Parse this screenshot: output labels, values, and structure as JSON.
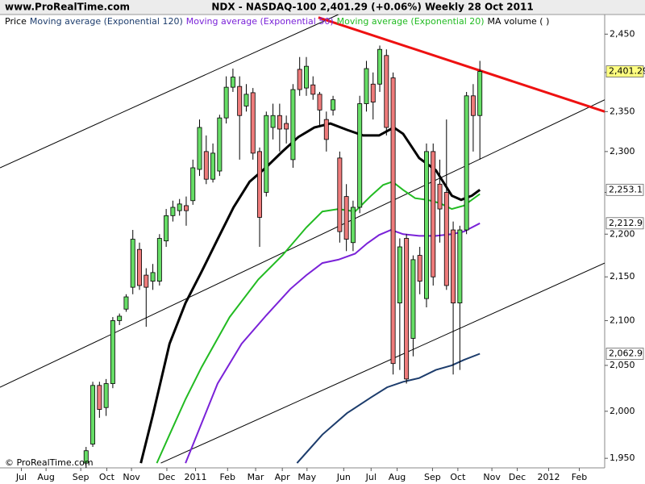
{
  "chart_data": {
    "type": "candlestick",
    "site": "www.ProRealTime.com",
    "title": "NDX - NASDAQ-100    2,401.29 (+0.06%)    Weekly  28 Oct 2011",
    "price_label": "Price",
    "copyright": "© ProRealTime.com",
    "log_scale": true,
    "up_color": "#66dd66",
    "down_color": "#ee7b7b",
    "open": [
      1945,
      1965,
      2028,
      2004,
      2030,
      2100,
      2113,
      2138,
      2182,
      2152,
      2145,
      2145,
      2192,
      2222,
      2228,
      2234,
      2240,
      2278,
      2300,
      2266,
      2276,
      2342,
      2381,
      2382,
      2357,
      2374,
      2300,
      2250,
      2330,
      2345,
      2335,
      2290,
      2404,
      2380,
      2384,
      2372,
      2340,
      2352,
      2292,
      2245,
      2190,
      2232,
      2360,
      2385,
      2385,
      2422,
      2393,
      2120,
      2195,
      2080,
      2175,
      2125,
      2300,
      2260,
      2250,
      2205,
      2120,
      2205,
      2370,
      2345
    ],
    "high": [
      1962,
      2032,
      2032,
      2035,
      2104,
      2108,
      2130,
      2205,
      2190,
      2160,
      2165,
      2200,
      2230,
      2240,
      2242,
      2245,
      2290,
      2340,
      2320,
      2310,
      2346,
      2395,
      2405,
      2395,
      2385,
      2380,
      2305,
      2350,
      2360,
      2360,
      2345,
      2385,
      2420,
      2420,
      2395,
      2375,
      2350,
      2370,
      2300,
      2260,
      2240,
      2370,
      2415,
      2400,
      2435,
      2430,
      2400,
      2195,
      2200,
      2175,
      2185,
      2310,
      2310,
      2290,
      2340,
      2215,
      2210,
      2375,
      2385,
      2415
    ],
    "low": [
      1940,
      1962,
      1993,
      1995,
      2025,
      2095,
      2110,
      2130,
      2135,
      2093,
      2135,
      2140,
      2185,
      2215,
      2222,
      2210,
      2235,
      2270,
      2260,
      2262,
      2270,
      2335,
      2375,
      2290,
      2350,
      2290,
      2185,
      2245,
      2315,
      2300,
      2310,
      2280,
      2370,
      2370,
      2365,
      2330,
      2300,
      2345,
      2190,
      2180,
      2180,
      2225,
      2350,
      2340,
      2375,
      2320,
      2040,
      2045,
      2030,
      2060,
      2130,
      2115,
      2140,
      2190,
      2135,
      2040,
      2045,
      2200,
      2300,
      2290
    ],
    "close": [
      1958,
      2028,
      2002,
      2030,
      2100,
      2105,
      2127,
      2194,
      2140,
      2138,
      2155,
      2195,
      2222,
      2232,
      2236,
      2228,
      2280,
      2330,
      2266,
      2298,
      2342,
      2381,
      2394,
      2345,
      2372,
      2298,
      2220,
      2345,
      2345,
      2328,
      2328,
      2378,
      2378,
      2408,
      2372,
      2352,
      2315,
      2365,
      2203,
      2194,
      2232,
      2360,
      2405,
      2362,
      2430,
      2330,
      2052,
      2185,
      2035,
      2170,
      2145,
      2300,
      2150,
      2230,
      2140,
      2120,
      2205,
      2370,
      2345,
      2401.29
    ],
    "close_labels": [
      null,
      null,
      null,
      null,
      null,
      null,
      null,
      null,
      null,
      null,
      null,
      null,
      null,
      null,
      null,
      null,
      null,
      null,
      null,
      null,
      null,
      null,
      null,
      null,
      null,
      null,
      null,
      null,
      null,
      null,
      null,
      null,
      null,
      null,
      null,
      null,
      null,
      null,
      null,
      null,
      null,
      null,
      null,
      null,
      null,
      null,
      null,
      null,
      null,
      null,
      null,
      null,
      null,
      null,
      null,
      null,
      null,
      null,
      null,
      "2,401.29"
    ],
    "series": [
      {
        "name": "Moving average (Exponential 120)",
        "color": "#1c3c6c",
        "x": [
          31.6,
          35.4,
          39.1,
          42.7,
          45.1,
          47.5,
          49.9,
          52.4,
          54.8,
          56.6,
          59
        ],
        "values": [
          1945,
          1975,
          1998,
          2015,
          2026,
          2032,
          2036,
          2045,
          2050,
          2056,
          2062.9
        ],
        "value_labels": [
          null,
          null,
          null,
          null,
          null,
          null,
          null,
          null,
          null,
          null,
          "2,062.9"
        ]
      },
      {
        "name": "Moving average (Exponential 50)",
        "color": "#7a22d8",
        "x": [
          14.9,
          19.7,
          23.3,
          27,
          30.6,
          33,
          35.4,
          37.8,
          40.3,
          42.1,
          43.9,
          45.7,
          47.5,
          49.9,
          52.4,
          54.8,
          56.6,
          59
        ],
        "values": [
          1945,
          2030,
          2074,
          2106,
          2136,
          2152,
          2166,
          2170,
          2177,
          2189,
          2199,
          2205,
          2200,
          2198,
          2198,
          2200,
          2203,
          2212.9
        ],
        "value_labels": [
          null,
          null,
          null,
          null,
          null,
          null,
          null,
          null,
          null,
          null,
          null,
          null,
          null,
          null,
          null,
          null,
          null,
          "2,212.9"
        ]
      },
      {
        "name": "Moving average (Exponential 20)",
        "color": "#22bb22",
        "x": [
          10.6,
          12.5,
          14.9,
          17.3,
          21.5,
          25.8,
          29.4,
          33,
          35.4,
          37.8,
          40.3,
          42.7,
          44.5,
          45.9,
          47.5,
          49.3,
          51.1,
          53,
          54.8,
          56.6,
          59
        ],
        "values": [
          1945,
          1975,
          2013,
          2048,
          2104,
          2147,
          2175,
          2208,
          2227,
          2230,
          2227,
          2246,
          2259,
          2263,
          2253,
          2243,
          2241,
          2237,
          2230,
          2234,
          2248
        ]
      },
      {
        "name": "MA volume (   )",
        "color": "#000000",
        "x": [
          8.2,
          10,
          12.5,
          14.9,
          17.3,
          19.7,
          22.1,
          24.5,
          26.9,
          29.4,
          31.8,
          34.2,
          36.6,
          39.1,
          41.5,
          43.9,
          46.1,
          47.5,
          49.9,
          52.4,
          54.8,
          56.2,
          57.8,
          59
        ],
        "values": [
          1945,
          1996,
          2074,
          2120,
          2156,
          2194,
          2232,
          2263,
          2280,
          2300,
          2318,
          2330,
          2335,
          2327,
          2320,
          2320,
          2330,
          2322,
          2292,
          2277,
          2246,
          2241,
          2246,
          2253.1
        ],
        "value_labels": [
          null,
          null,
          null,
          null,
          null,
          null,
          null,
          null,
          null,
          null,
          null,
          null,
          null,
          null,
          null,
          null,
          null,
          null,
          null,
          null,
          null,
          null,
          null,
          "2,253.1"
        ]
      }
    ],
    "trendlines": [
      {
        "color": "#000000",
        "line_width": 1,
        "x": [
          -12.9,
          37.8
        ],
        "values": [
          2280,
          2476
        ]
      },
      {
        "color": "#000000",
        "line_width": 1,
        "x": [
          -12.9,
          77.7
        ],
        "values": [
          2026,
          2365
        ]
      },
      {
        "color": "#000000",
        "line_width": 1,
        "x": [
          11.2,
          77.7
        ],
        "values": [
          1945,
          2166
        ]
      },
      {
        "color": "#ee1111",
        "line_width": 3,
        "x": [
          34.8,
          77.7
        ],
        "values": [
          2472,
          2350
        ]
      }
    ],
    "xlim": [
      -12.9,
      77.7
    ],
    "xticks": [
      {
        "value": -9.7,
        "label": "Jul"
      },
      {
        "value": -6,
        "label": "Aug"
      },
      {
        "value": -0.8,
        "label": "Sep"
      },
      {
        "value": 3.1,
        "label": "Oct"
      },
      {
        "value": 6.8,
        "label": "Nov"
      },
      {
        "value": 12.1,
        "label": "Dec"
      },
      {
        "value": 16.4,
        "label": "2011"
      },
      {
        "value": 21.2,
        "label": "Feb"
      },
      {
        "value": 25.4,
        "label": "Mar"
      },
      {
        "value": 29.4,
        "label": "Apr"
      },
      {
        "value": 33.1,
        "label": "May"
      },
      {
        "value": 38.6,
        "label": "Jun"
      },
      {
        "value": 42.7,
        "label": "Jul"
      },
      {
        "value": 46.6,
        "label": "Aug"
      },
      {
        "value": 51.9,
        "label": "Sep"
      },
      {
        "value": 55.7,
        "label": "Oct"
      },
      {
        "value": 60.8,
        "label": "Nov"
      },
      {
        "value": 64.6,
        "label": "Dec"
      },
      {
        "value": 69.3,
        "label": "2012"
      },
      {
        "value": 73.9,
        "label": "Feb"
      }
    ],
    "ylim": [
      1940,
      2476
    ],
    "yticks": [
      {
        "value": 1950,
        "label": "1,950"
      },
      {
        "value": 2000,
        "label": "2,000"
      },
      {
        "value": 2050,
        "label": "2,050"
      },
      {
        "value": 2100,
        "label": "2,100"
      },
      {
        "value": 2150,
        "label": "2,150"
      },
      {
        "value": 2200,
        "label": "2,200"
      },
      {
        "value": 2250,
        "label": "2,250"
      },
      {
        "value": 2300,
        "label": "2,300"
      },
      {
        "value": 2350,
        "label": "2,350"
      },
      {
        "value": 2400,
        "label": "2,400"
      },
      {
        "value": 2450,
        "label": "2,450"
      }
    ]
  }
}
